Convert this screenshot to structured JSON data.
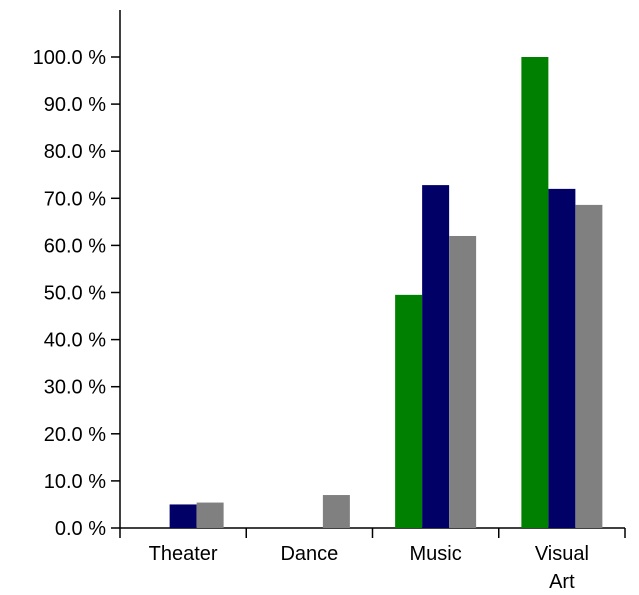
{
  "chart_data": {
    "type": "bar",
    "categories": [
      [
        "Theater"
      ],
      [
        "Dance"
      ],
      [
        "Music"
      ],
      [
        "Visual",
        "Art"
      ]
    ],
    "series": [
      {
        "color": "#008000",
        "values": [
          0,
          0,
          49.5,
          100.0
        ]
      },
      {
        "color": "#000066",
        "values": [
          5.0,
          0,
          72.8,
          72.0
        ]
      },
      {
        "color": "#808080",
        "values": [
          5.4,
          7.0,
          62.0,
          68.6
        ]
      }
    ],
    "ylim": [
      0,
      100
    ],
    "yticks": [
      "0.0 %",
      "10.0 %",
      "20.0 %",
      "30.0 %",
      "40.0 %",
      "50.0 %",
      "60.0 %",
      "70.0 %",
      "80.0 %",
      "90.0 %",
      "100.0 %"
    ],
    "ytick_values": [
      0,
      10,
      20,
      30,
      40,
      50,
      60,
      70,
      80,
      90,
      100
    ],
    "grid": false,
    "legend": "none"
  }
}
